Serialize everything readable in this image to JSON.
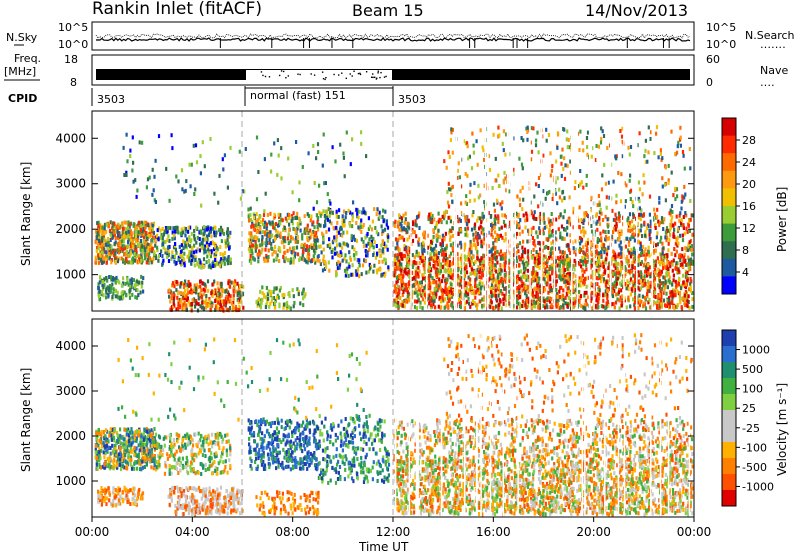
{
  "header": {
    "station": "Rankin Inlet (fitACF)",
    "beam": "Beam 15",
    "date": "14/Nov/2013"
  },
  "top_panels": {
    "left_labels": {
      "nsky": "N.Sky",
      "freq_line1": "Freq.",
      "freq_line2": "[MHz]",
      "cpid": "CPID"
    },
    "right_labels": {
      "nsearch": "N.Search",
      "nsearch_dots": "․․․․․․․",
      "nave": "Nave",
      "nave_dots": "․․․․"
    },
    "noise_ticks_left": [
      "10^5",
      "10^0"
    ],
    "noise_ticks_right": [
      "10^5",
      "10^0"
    ],
    "freq_ticks": [
      "18",
      "8"
    ],
    "nave_ticks": [
      "60",
      "0"
    ],
    "cpid_segments": [
      {
        "label": "3503",
        "start_h": 0.0,
        "end_h": 6.0
      },
      {
        "label": "normal (fast) 151",
        "start_h": 6.0,
        "end_h": 12.0
      },
      {
        "label": "3503",
        "start_h": 12.0,
        "end_h": 24.0
      }
    ]
  },
  "chart_data": [
    {
      "type": "heatmap",
      "name": "power",
      "ylabel": "Slant Range [km]",
      "y_ticks": [
        1000,
        2000,
        3000,
        4000
      ],
      "ylim": [
        200,
        4600
      ],
      "xlim_hours": [
        0,
        24
      ],
      "colorbar_label": "Power [dB]",
      "colorbar_ticks": [
        "28",
        "24",
        "20",
        "16",
        "12",
        "8",
        "4"
      ],
      "colorbar_colors": [
        "#d60000",
        "#ff2a00",
        "#ff6a00",
        "#ff9a10",
        "#f0c000",
        "#9acd32",
        "#3c9c3c",
        "#2f6f4f",
        "#1e5aa0",
        "#0000ff"
      ],
      "dashed_lines_hours": [
        6,
        12
      ]
    },
    {
      "type": "heatmap",
      "name": "velocity",
      "ylabel": "Slant Range [km]",
      "y_ticks": [
        1000,
        2000,
        3000,
        4000
      ],
      "ylim": [
        200,
        4600
      ],
      "xlim_hours": [
        0,
        24
      ],
      "colorbar_label": "Velocity [m s⁻¹]",
      "colorbar_ticks": [
        "1000",
        "500",
        "100",
        "25",
        "-25",
        "-100",
        "-500",
        "-1000"
      ],
      "colorbar_colors": [
        "#1e3fb0",
        "#2a6fd0",
        "#1f8f6f",
        "#40b040",
        "#7fd040",
        "#c8c8c8",
        "#c8c8c8",
        "#ffb000",
        "#ff8000",
        "#ff5000",
        "#e00000"
      ],
      "dashed_lines_hours": [
        6,
        12
      ]
    }
  ],
  "x_axis": {
    "ticks": [
      "00:00",
      "04:00",
      "08:00",
      "12:00",
      "16:00",
      "20:00",
      "00:00"
    ],
    "label": "Time UT"
  }
}
